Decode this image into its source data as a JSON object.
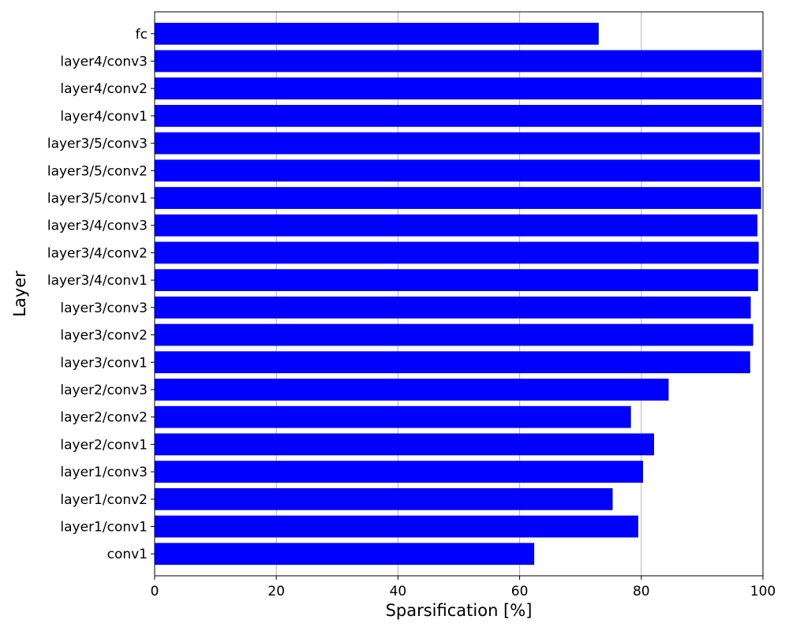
{
  "chart_data": {
    "type": "bar",
    "orientation": "horizontal",
    "title": "",
    "xlabel": "Sparsification [%]",
    "ylabel": "Layer",
    "xlim": [
      0,
      100
    ],
    "xticks": [
      "0",
      "20",
      "40",
      "60",
      "80",
      "100"
    ],
    "grid": "x",
    "bar_color": "#0000ff",
    "categories": [
      "conv1",
      "layer1/conv1",
      "layer1/conv2",
      "layer1/conv3",
      "layer2/conv1",
      "layer2/conv2",
      "layer2/conv3",
      "layer3/conv1",
      "layer3/conv2",
      "layer3/conv3",
      "layer3/4/conv1",
      "layer3/4/conv2",
      "layer3/4/conv3",
      "layer3/5/conv1",
      "layer3/5/conv2",
      "layer3/5/conv3",
      "layer4/conv1",
      "layer4/conv2",
      "layer4/conv3",
      "fc"
    ],
    "values": [
      62.4,
      79.5,
      75.3,
      80.3,
      82.1,
      78.3,
      84.5,
      97.9,
      98.4,
      98.0,
      99.2,
      99.3,
      99.1,
      99.7,
      99.5,
      99.5,
      99.8,
      99.8,
      99.8,
      73.0
    ]
  }
}
